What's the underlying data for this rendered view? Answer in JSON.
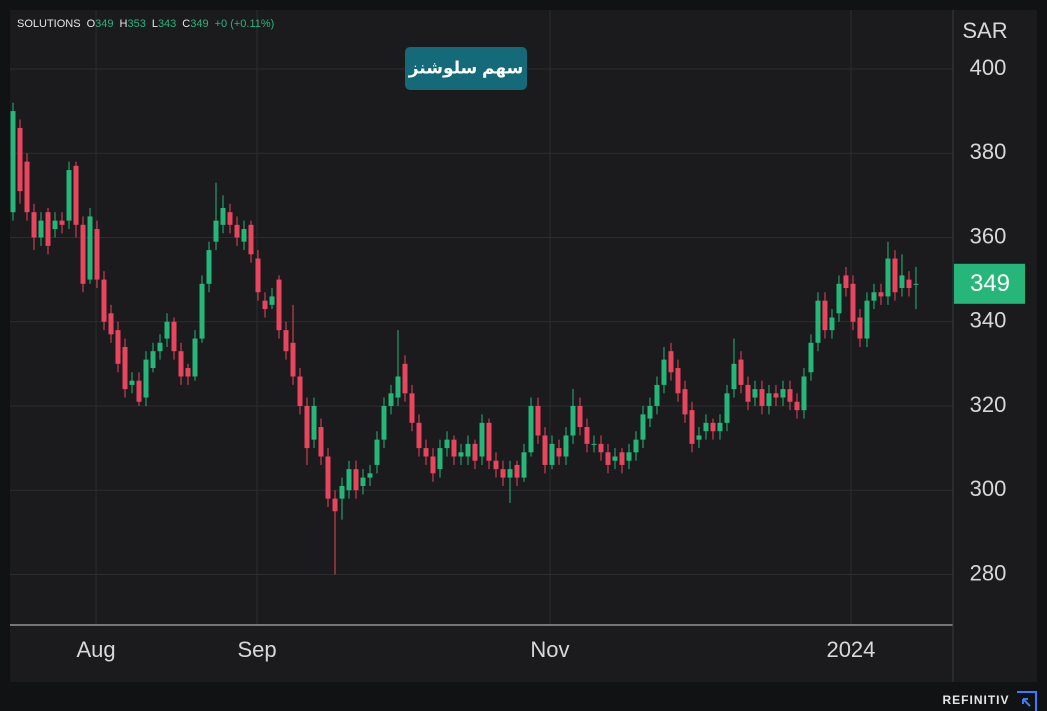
{
  "chart_data": {
    "type": "candlestick",
    "title": "سهم سلوشنز",
    "symbol": "SOLUTIONS",
    "ohlc_labels": [
      "O",
      "H",
      "L",
      "C"
    ],
    "ohlc_values": [
      349,
      353,
      343,
      349
    ],
    "change": "+0 (+0.11%)",
    "currency": "SAR",
    "last_price": 349,
    "source": "REFINITIV",
    "up_color": "#26b67a",
    "down_color": "#e8455f",
    "grid": true,
    "ylim": [
      268,
      414
    ],
    "yticks": [
      280,
      300,
      320,
      340,
      360,
      380,
      400
    ],
    "xlim": [
      -0.43,
      134.29
    ],
    "xticks": [
      {
        "value": 11.86,
        "label": "Aug"
      },
      {
        "value": 34.86,
        "label": "Sep"
      },
      {
        "value": 76.71,
        "label": "Nov"
      },
      {
        "value": 119.71,
        "label": "2024"
      }
    ],
    "ohlc": [
      [
        366,
        392,
        364,
        390
      ],
      [
        386,
        388,
        368,
        371
      ],
      [
        378,
        380,
        364,
        366
      ],
      [
        366,
        368,
        357,
        360
      ],
      [
        360,
        366,
        358,
        364
      ],
      [
        366,
        367,
        356,
        358
      ],
      [
        362,
        366,
        360,
        364
      ],
      [
        364,
        366,
        361,
        363
      ],
      [
        364,
        378,
        362,
        376
      ],
      [
        377,
        378,
        360,
        363
      ],
      [
        363,
        365,
        347,
        349
      ],
      [
        350,
        367,
        349,
        365
      ],
      [
        362,
        364,
        348,
        350
      ],
      [
        350,
        352,
        338,
        340
      ],
      [
        342,
        344,
        335,
        337
      ],
      [
        338,
        340,
        328,
        330
      ],
      [
        334,
        336,
        322,
        324
      ],
      [
        325,
        328,
        323,
        326
      ],
      [
        326,
        328,
        320,
        321
      ],
      [
        322,
        333,
        320,
        331
      ],
      [
        329,
        335,
        328,
        333
      ],
      [
        333,
        337,
        331,
        335
      ],
      [
        336,
        342,
        334,
        340
      ],
      [
        340,
        341,
        331,
        333
      ],
      [
        333,
        335,
        325,
        327
      ],
      [
        329,
        330,
        325,
        327
      ],
      [
        327,
        338,
        326,
        336
      ],
      [
        336,
        351,
        335,
        349
      ],
      [
        349,
        359,
        347,
        357
      ],
      [
        359,
        373,
        357,
        364
      ],
      [
        363,
        370,
        361,
        367
      ],
      [
        366,
        368,
        361,
        363
      ],
      [
        363,
        365,
        358,
        360
      ],
      [
        359,
        364,
        357,
        362
      ],
      [
        363,
        364,
        354,
        356
      ],
      [
        355,
        357,
        345,
        347
      ],
      [
        345,
        347,
        341,
        343
      ],
      [
        344,
        348,
        343,
        346
      ],
      [
        350,
        351,
        336,
        338
      ],
      [
        338,
        340,
        331,
        333
      ],
      [
        335,
        344,
        325,
        327
      ],
      [
        327,
        329,
        318,
        320
      ],
      [
        320,
        322,
        306,
        310
      ],
      [
        312,
        322,
        310,
        320
      ],
      [
        315,
        317,
        306,
        308
      ],
      [
        308,
        310,
        296,
        298
      ],
      [
        298,
        300,
        280,
        295
      ],
      [
        298,
        303,
        293,
        301
      ],
      [
        300,
        307,
        298,
        305
      ],
      [
        305,
        307,
        298,
        300
      ],
      [
        301,
        305,
        299,
        303
      ],
      [
        303,
        306,
        301,
        304
      ],
      [
        306,
        314,
        304,
        312
      ],
      [
        312,
        322,
        310,
        320
      ],
      [
        320,
        325,
        318,
        323
      ],
      [
        322,
        338,
        320,
        327
      ],
      [
        330,
        332,
        321,
        323
      ],
      [
        323,
        325,
        314,
        316
      ],
      [
        316,
        318,
        308,
        310
      ],
      [
        310,
        312,
        306,
        308
      ],
      [
        308,
        310,
        302,
        304
      ],
      [
        305,
        312,
        303,
        310
      ],
      [
        310,
        314,
        308,
        312
      ],
      [
        312,
        313,
        306,
        308
      ],
      [
        308,
        311,
        306,
        309
      ],
      [
        308,
        313,
        306,
        311
      ],
      [
        311,
        312,
        305,
        307
      ],
      [
        308,
        318,
        306,
        316
      ],
      [
        316,
        317,
        305,
        307
      ],
      [
        307,
        309,
        303,
        305
      ],
      [
        305,
        307,
        301,
        303
      ],
      [
        303,
        307,
        297,
        305
      ],
      [
        306,
        307,
        301,
        303
      ],
      [
        303,
        311,
        302,
        309
      ],
      [
        309,
        322,
        308,
        320
      ],
      [
        320,
        322,
        311,
        313
      ],
      [
        313,
        315,
        304,
        306
      ],
      [
        306,
        313,
        305,
        311
      ],
      [
        310,
        312,
        306,
        308
      ],
      [
        308,
        315,
        306,
        313
      ],
      [
        313,
        324,
        311,
        320
      ],
      [
        320,
        322,
        313,
        315
      ],
      [
        315,
        317,
        309,
        311
      ],
      [
        311,
        313,
        309,
        311
      ],
      [
        311,
        313,
        307,
        309
      ],
      [
        309,
        311,
        304,
        306
      ],
      [
        307,
        310,
        305,
        308
      ],
      [
        309,
        310,
        304,
        306
      ],
      [
        307,
        311,
        305,
        309
      ],
      [
        309,
        314,
        307,
        312
      ],
      [
        312,
        320,
        310,
        318
      ],
      [
        317,
        322,
        315,
        320
      ],
      [
        320,
        327,
        318,
        325
      ],
      [
        325,
        334,
        323,
        331
      ],
      [
        333,
        335,
        326,
        328
      ],
      [
        329,
        331,
        321,
        323
      ],
      [
        324,
        326,
        316,
        318
      ],
      [
        319,
        321,
        309,
        311
      ],
      [
        312,
        315,
        310,
        313
      ],
      [
        314,
        318,
        312,
        316
      ],
      [
        316,
        317,
        312,
        314
      ],
      [
        314,
        318,
        312,
        316
      ],
      [
        316,
        325,
        314,
        323
      ],
      [
        324,
        336,
        322,
        330
      ],
      [
        331,
        333,
        323,
        325
      ],
      [
        325,
        327,
        319,
        321
      ],
      [
        322,
        326,
        320,
        324
      ],
      [
        324,
        326,
        318,
        320
      ],
      [
        320,
        325,
        318,
        323
      ],
      [
        323,
        325,
        320,
        322
      ],
      [
        322,
        326,
        320,
        324
      ],
      [
        324,
        326,
        319,
        321
      ],
      [
        321,
        323,
        317,
        319
      ],
      [
        319,
        329,
        317,
        327
      ],
      [
        328,
        337,
        326,
        335
      ],
      [
        335,
        347,
        333,
        345
      ],
      [
        345,
        347,
        336,
        338
      ],
      [
        338,
        343,
        336,
        341
      ],
      [
        342,
        351,
        340,
        349
      ],
      [
        351,
        353,
        346,
        348
      ],
      [
        349,
        351,
        338,
        340
      ],
      [
        341,
        343,
        334,
        336
      ],
      [
        336,
        347,
        334,
        345
      ],
      [
        345,
        349,
        343,
        347
      ],
      [
        347,
        349,
        344,
        346
      ],
      [
        346,
        359,
        344,
        355
      ],
      [
        355,
        357,
        345,
        347
      ],
      [
        348,
        356,
        346,
        351
      ],
      [
        350,
        352,
        346,
        348
      ],
      [
        349,
        353,
        343,
        349
      ]
    ]
  }
}
